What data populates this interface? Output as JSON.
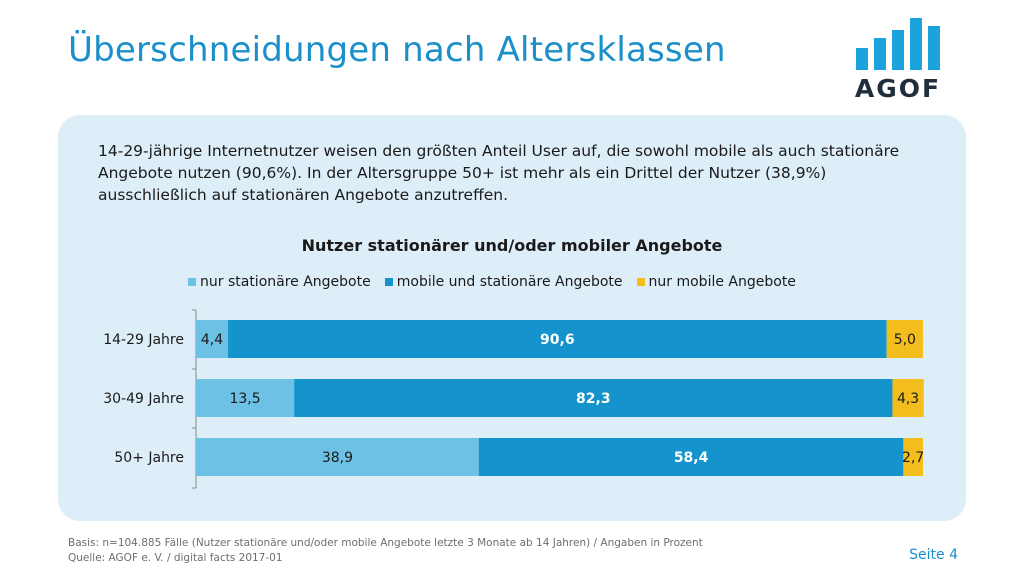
{
  "slide": {
    "title": "Überschneidungen nach Altersklassen",
    "intro": "14-29-jährige Internetnutzer weisen den größten Anteil User auf, die sowohl mobile als auch stationäre Angebote nutzen (90,6%). In der Altersgruppe 50+ ist mehr als ein Drittel der Nutzer (38,9%) ausschließlich auf stationären Angebote anzutreffen.",
    "footer_basis": "Basis: n=104.885 Fälle (Nutzer stationäre und/oder mobile Angebote letzte 3 Monate ab 14 Jahren) / Angaben in Prozent",
    "footer_source": "Quelle: AGOF e. V. / digital facts 2017-01",
    "page_number": "Seite 4"
  },
  "logo": {
    "text": "AGOF",
    "color": "#1aa3dc",
    "text_color": "#1f2d3d"
  },
  "colors": {
    "title": "#1a8fc9",
    "panel": "#deeef8",
    "stationary": "#6cc1e5",
    "both": "#1493cc",
    "mobile": "#f2bd1d"
  },
  "chart_data": {
    "type": "bar",
    "orientation": "horizontal",
    "stacked": true,
    "title": "Nutzer stationärer und/oder mobiler Angebote",
    "categories": [
      "14-29 Jahre",
      "30-49 Jahre",
      "50+ Jahre"
    ],
    "series": [
      {
        "name": "nur stationäre Angebote",
        "values": [
          4.4,
          13.5,
          38.9
        ],
        "labels": [
          "4,4",
          "13,5",
          "38,9"
        ],
        "color": "#6cc1e5",
        "label_color": "#1a1a1a",
        "label_bold": false
      },
      {
        "name": "mobile und stationäre Angebote",
        "values": [
          90.6,
          82.3,
          58.4
        ],
        "labels": [
          "90,6",
          "82,3",
          "58,4"
        ],
        "color": "#1493cc",
        "label_color": "#ffffff",
        "label_bold": true
      },
      {
        "name": "nur mobile Angebote",
        "values": [
          5.0,
          4.3,
          2.7
        ],
        "labels": [
          "5,0",
          "4,3",
          "2,7"
        ],
        "color": "#f2bd1d",
        "label_color": "#1a1a1a",
        "label_bold": false
      }
    ],
    "xlim": [
      0,
      100
    ],
    "legend_position": "top",
    "grid": false
  }
}
